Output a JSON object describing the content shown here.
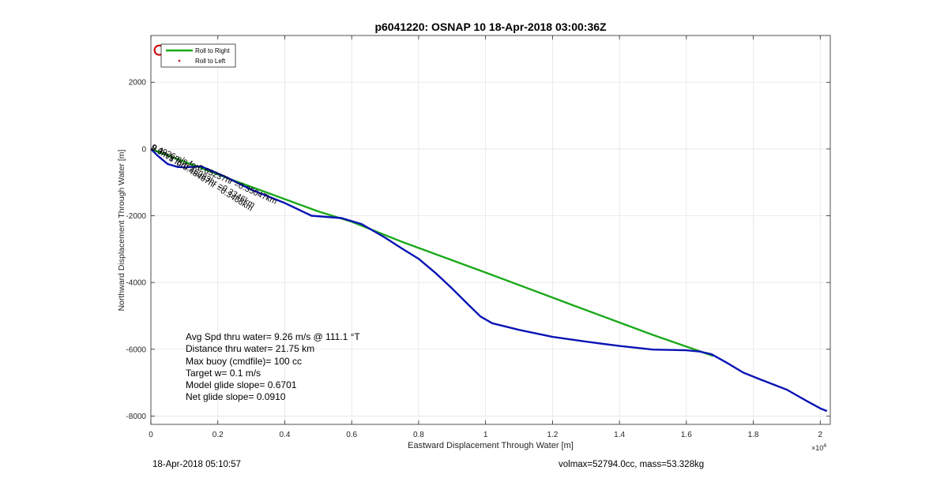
{
  "chart_data": {
    "type": "line",
    "title": "p6041220: OSNAP 10 18-Apr-2018 03:00:36Z",
    "xlabel": "Eastward Displacement Through Water [m]",
    "ylabel": "Northward Displacement Through Water [m]",
    "x_exponent_label": "×10^4",
    "xlim": [
      0,
      20300
    ],
    "ylim": [
      -8250,
      3400
    ],
    "grid": true,
    "legend_placement": "top-left",
    "x_ticks": [
      0,
      2000,
      4000,
      6000,
      8000,
      10000,
      12000,
      14000,
      16000,
      18000,
      20000
    ],
    "x_tick_labels": [
      "0",
      "0.2",
      "0.4",
      "0.6",
      "0.8",
      "1",
      "1.2",
      "1.4",
      "1.6",
      "1.8",
      "2"
    ],
    "y_ticks": [
      2000,
      0,
      -2000,
      -4000,
      -6000,
      -8000
    ],
    "y_tick_labels": [
      "2000",
      "0",
      "-2000",
      "-4000",
      "-6000",
      "-8000"
    ],
    "series": [
      {
        "name": "Roll to Right",
        "color": "#1aa81a",
        "style": "line",
        "x": [
          0,
          2500,
          5000,
          6000,
          7500,
          10000,
          12500,
          15000,
          16800
        ],
        "y": [
          0,
          -950,
          -1870,
          -2180,
          -2780,
          -3700,
          -4640,
          -5570,
          -6200
        ]
      },
      {
        "name": "Roll to Left",
        "color": "#cc0000",
        "style": "dot",
        "x": [],
        "y": []
      },
      {
        "name": "",
        "color": "#0a14b4",
        "style": "line",
        "x": [
          0,
          200,
          500,
          800,
          1000,
          1500,
          2200,
          3000,
          4000,
          4800,
          5700,
          6300,
          7000,
          7500,
          8000,
          8500,
          9000,
          9500,
          9850,
          10200,
          11000,
          12000,
          13000,
          14000,
          15000,
          16000,
          16400,
          16750,
          17200,
          17700,
          18200,
          19000,
          19600,
          20000,
          20200
        ],
        "y": [
          0,
          -200,
          -450,
          -540,
          -550,
          -520,
          -820,
          -1220,
          -1620,
          -2000,
          -2070,
          -2250,
          -2660,
          -2980,
          -3290,
          -3710,
          -4180,
          -4680,
          -5020,
          -5220,
          -5420,
          -5630,
          -5770,
          -5900,
          -6010,
          -6030,
          -6070,
          -6150,
          -6400,
          -6700,
          -6900,
          -7210,
          -7550,
          -7770,
          -7850
        ]
      }
    ],
    "markers": [
      {
        "name": "start-marker",
        "x": 250,
        "y": 2960,
        "color": "#cc0000",
        "shape": "circle"
      }
    ],
    "annotations": [
      {
        "text": "9.3m/s for0.46083hr =0.3346km",
        "x": 0,
        "y": 0,
        "angle": 30
      },
      {
        "text": "9.3m/s for0.48467hr =0.3466km",
        "x": 0,
        "y": 0,
        "angle": 32
      },
      {
        "text": "0.4926m/s for0.65237hr =0.35047km",
        "x": 0,
        "y": 0,
        "angle": 24
      }
    ]
  },
  "stats": [
    "Avg Spd thru water=  9.26 m/s @ 111.1 °T",
    "Distance thru water= 21.75 km",
    "Max buoy (cmdfile)= 100 cc",
    "Target w= 0.1 m/s",
    "Model glide slope= 0.6701",
    "Net glide slope= 0.0910"
  ],
  "footer": {
    "left": "18-Apr-2018 05:10:57",
    "right": "volmax=52794.0cc, mass=53.328kg"
  }
}
